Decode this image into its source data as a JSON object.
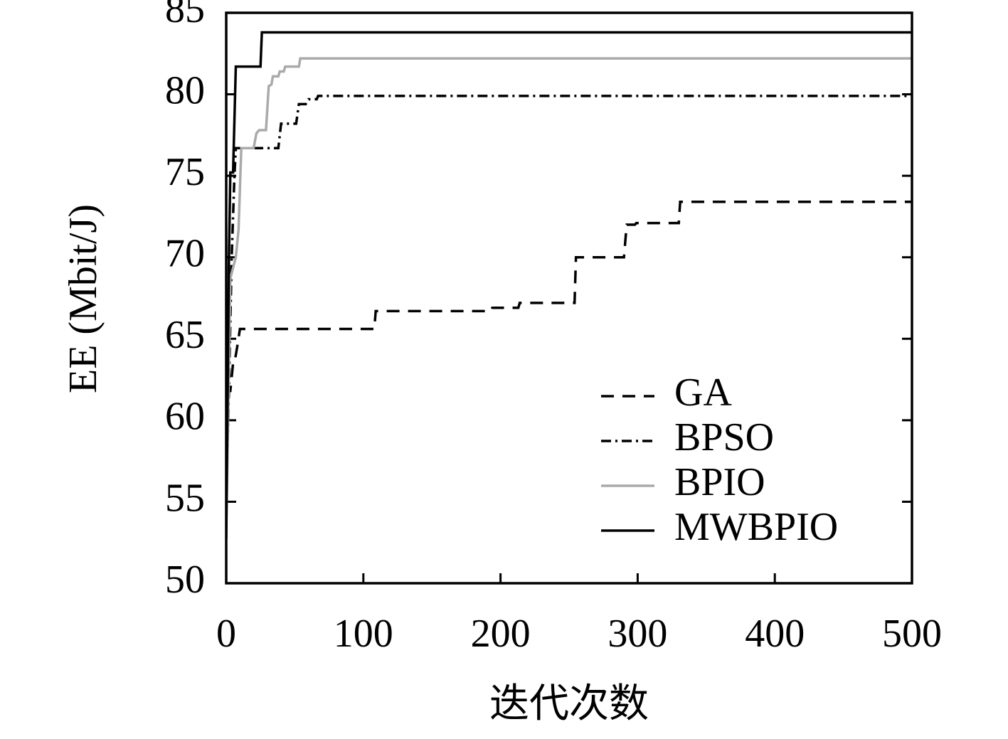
{
  "chart_data": {
    "type": "line",
    "x_label": "迭代次数",
    "y_label": "EE (Mbit/J)",
    "xlim": [
      0,
      500
    ],
    "xticks": [
      0,
      100,
      200,
      300,
      400,
      500
    ],
    "ylim": [
      50,
      85
    ],
    "yticks": [
      50,
      55,
      60,
      65,
      70,
      75,
      80,
      85
    ],
    "legend": "lower right",
    "series": [
      {
        "name": "GA",
        "color": "#000000",
        "dash": "dashed",
        "x": [
          0,
          1,
          2,
          3,
          5,
          6,
          8,
          10,
          108,
          109,
          193,
          194,
          213,
          214,
          254,
          255,
          290,
          292,
          298,
          299,
          330,
          331,
          500
        ],
        "values": [
          57.5,
          60,
          61.8,
          61.8,
          63.5,
          63.5,
          64.5,
          65.6,
          65.6,
          66.7,
          66.7,
          66.9,
          66.9,
          67.2,
          67.2,
          70.0,
          70.0,
          72.0,
          72.0,
          72.1,
          72.1,
          73.4,
          73.4
        ]
      },
      {
        "name": "BPSO",
        "color": "#000000",
        "dash": "dashdot",
        "x": [
          0,
          2,
          4,
          6,
          7,
          38,
          40,
          51,
          53,
          58,
          60,
          66,
          67,
          500
        ],
        "values": [
          55,
          62,
          70,
          75,
          76.7,
          76.7,
          78.2,
          78.2,
          79.4,
          79.4,
          79.7,
          79.7,
          79.9,
          79.9
        ]
      },
      {
        "name": "BPIO",
        "color": "#aaaaaa",
        "dash": "solid",
        "x": [
          0,
          3,
          7,
          9,
          11,
          20,
          22,
          24,
          29,
          31,
          33,
          34,
          38,
          39,
          42,
          43,
          53,
          54,
          500
        ],
        "values": [
          53,
          68.7,
          70,
          71.7,
          76.7,
          76.7,
          77.6,
          77.8,
          77.8,
          80.5,
          80.6,
          81.1,
          81.1,
          81.4,
          81.4,
          81.7,
          81.7,
          82.2,
          82.2
        ]
      },
      {
        "name": "MWBPIO",
        "color": "#000000",
        "dash": "solid",
        "x": [
          0,
          2,
          3,
          5,
          7,
          25,
          26,
          500
        ],
        "values": [
          52.7,
          70,
          75.2,
          75.2,
          81.7,
          81.7,
          83.8,
          83.8
        ]
      }
    ]
  }
}
